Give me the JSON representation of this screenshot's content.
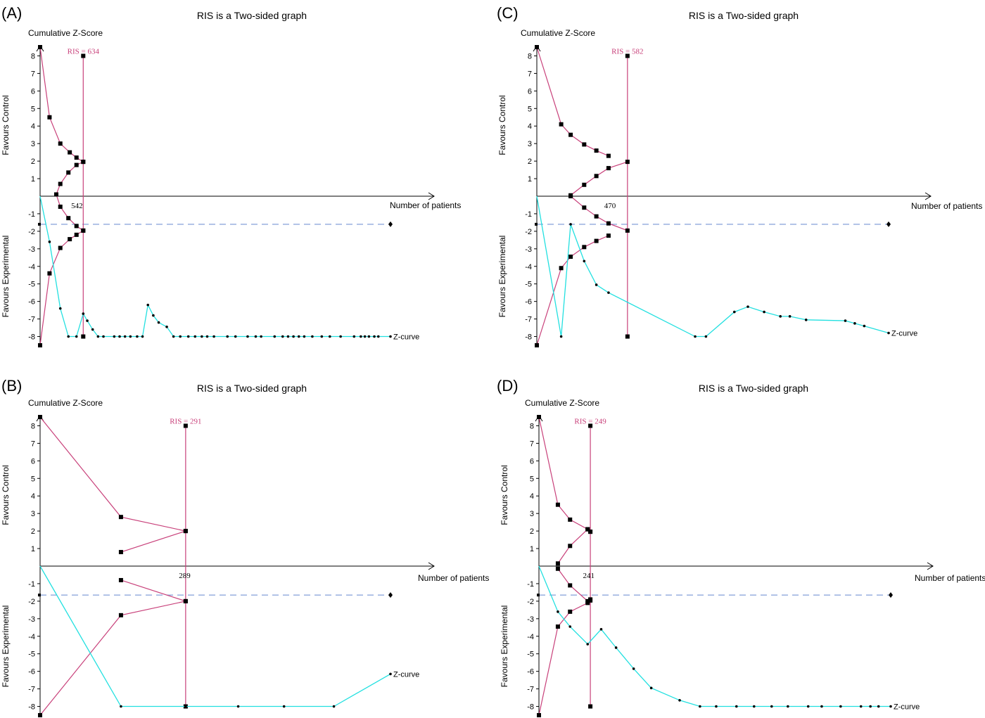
{
  "colors": {
    "boundary": "#c8407a",
    "z_curve": "#22e0e0",
    "futility": "#8fa8dc",
    "axis": "#000000"
  },
  "chart_data": [
    {
      "type": "line",
      "panel": "(A)",
      "title": "RIS is a Two-sided graph",
      "ylabel": "Cumulative Z-Score",
      "ylabel_upper": "Favours Control",
      "ylabel_lower": "Favours Experimental",
      "xlabel": "Number of patients",
      "yticks": [
        8,
        7,
        6,
        5,
        4,
        3,
        2,
        1,
        -1,
        -2,
        -3,
        -4,
        -5,
        -6,
        -7,
        -8
      ],
      "ylim": [
        -8.5,
        8.5
      ],
      "xlim": [
        0,
        2600
      ],
      "ris_label": "RIS = 634",
      "ris_value": 634,
      "x_marker": 542,
      "x_marker_label": "542",
      "z_curve_label": "Z-curve",
      "futility_level": -1.6,
      "futility_end": 2600,
      "boundaries": [
        {
          "name": "upper_efficacy",
          "points": [
            [
              0,
              8.5
            ],
            [
              70,
              4.5
            ],
            [
              150,
              3.0
            ],
            [
              220,
              2.5
            ],
            [
              270,
              2.2
            ],
            [
              320,
              1.96
            ]
          ]
        },
        {
          "name": "upper_futility",
          "points": [
            [
              120,
              0.1
            ],
            [
              150,
              0.7
            ],
            [
              210,
              1.35
            ],
            [
              270,
              1.78
            ],
            [
              320,
              1.96
            ]
          ]
        },
        {
          "name": "lower_futility",
          "points": [
            [
              120,
              0.1
            ],
            [
              150,
              -0.6
            ],
            [
              210,
              -1.25
            ],
            [
              270,
              -1.7
            ],
            [
              320,
              -1.96
            ]
          ]
        },
        {
          "name": "lower_efficacy",
          "points": [
            [
              0,
              -8.5
            ],
            [
              70,
              -4.4
            ],
            [
              150,
              -2.95
            ],
            [
              220,
              -2.45
            ],
            [
              270,
              -2.2
            ],
            [
              320,
              -1.96
            ]
          ]
        }
      ],
      "ris_line": [
        [
          320,
          8.0
        ],
        [
          320,
          -8.0
        ]
      ],
      "z_curve": [
        [
          0,
          0
        ],
        [
          70,
          -2.6
        ],
        [
          150,
          -6.4
        ],
        [
          210,
          -8.0
        ],
        [
          270,
          -8.0
        ],
        [
          320,
          -6.7
        ],
        [
          350,
          -7.1
        ],
        [
          390,
          -7.6
        ],
        [
          430,
          -8.0
        ],
        [
          470,
          -8.0
        ],
        [
          550,
          -8.0
        ],
        [
          590,
          -8.0
        ],
        [
          630,
          -8.0
        ],
        [
          670,
          -8.0
        ],
        [
          720,
          -8.0
        ],
        [
          760,
          -8.0
        ],
        [
          800,
          -6.2
        ],
        [
          840,
          -6.8
        ],
        [
          880,
          -7.2
        ],
        [
          940,
          -7.45
        ],
        [
          990,
          -8.0
        ],
        [
          1040,
          -8.0
        ],
        [
          1100,
          -8.0
        ],
        [
          1150,
          -8.0
        ],
        [
          1200,
          -8.0
        ],
        [
          1240,
          -8.0
        ],
        [
          1290,
          -8.0
        ],
        [
          1390,
          -8.0
        ],
        [
          1450,
          -8.0
        ],
        [
          1540,
          -8.0
        ],
        [
          1600,
          -8.0
        ],
        [
          1640,
          -8.0
        ],
        [
          1740,
          -8.0
        ],
        [
          1800,
          -8.0
        ],
        [
          1840,
          -8.0
        ],
        [
          1880,
          -8.0
        ],
        [
          1920,
          -8.0
        ],
        [
          1960,
          -8.0
        ],
        [
          2020,
          -8.0
        ],
        [
          2090,
          -8.0
        ],
        [
          2150,
          -8.0
        ],
        [
          2230,
          -8.0
        ],
        [
          2330,
          -8.0
        ],
        [
          2380,
          -8.0
        ],
        [
          2410,
          -8.0
        ],
        [
          2440,
          -8.0
        ],
        [
          2480,
          -8.0
        ],
        [
          2510,
          -8.0
        ],
        [
          2600,
          -8.0
        ]
      ]
    },
    {
      "type": "line",
      "panel": "(B)",
      "title": "RIS is a Two-sided graph",
      "ylabel": "Cumulative Z-Score",
      "ylabel_upper": "Favours Control",
      "ylabel_lower": "Favours Experimental",
      "xlabel": "Number of patients",
      "yticks": [
        8,
        7,
        6,
        5,
        4,
        3,
        2,
        1,
        -1,
        -2,
        -3,
        -4,
        -5,
        -6,
        -7,
        -8
      ],
      "ylim": [
        -8.5,
        8.5
      ],
      "xlim": [
        0,
        2600
      ],
      "ris_label": "RIS = 291",
      "ris_value": 291,
      "x_marker": 289,
      "x_marker_label": "289",
      "z_curve_label": "Z-curve",
      "futility_level": -1.65,
      "futility_end": 2600,
      "boundaries": [
        {
          "name": "upper_efficacy",
          "points": [
            [
              0,
              8.5
            ],
            [
              600,
              2.8
            ],
            [
              1080,
              2.0
            ]
          ]
        },
        {
          "name": "upper_futility",
          "points": [
            [
              600,
              0.8
            ],
            [
              1080,
              2.0
            ]
          ]
        },
        {
          "name": "lower_futility",
          "points": [
            [
              600,
              -0.8
            ],
            [
              1080,
              -2.0
            ]
          ]
        },
        {
          "name": "lower_efficacy",
          "points": [
            [
              0,
              -8.5
            ],
            [
              600,
              -2.8
            ],
            [
              1080,
              -2.0
            ]
          ]
        }
      ],
      "ris_line": [
        [
          1080,
          8.0
        ],
        [
          1080,
          -8.0
        ]
      ],
      "z_curve": [
        [
          0,
          0
        ],
        [
          600,
          -8.0
        ],
        [
          1080,
          -8.0
        ],
        [
          1470,
          -8.0
        ],
        [
          1810,
          -8.0
        ],
        [
          2180,
          -8.0
        ],
        [
          2600,
          -6.15
        ]
      ]
    },
    {
      "type": "line",
      "panel": "(C)",
      "title": "RIS is a Two-sided graph",
      "ylabel": "Cumulative Z-Score",
      "ylabel_upper": "Favours Control",
      "ylabel_lower": "Favours Experimental",
      "xlabel": "Number of patients",
      "yticks": [
        8,
        7,
        6,
        5,
        4,
        3,
        2,
        1,
        -1,
        -2,
        -3,
        -4,
        -5,
        -6,
        -7,
        -8
      ],
      "ylim": [
        -8.5,
        8.5
      ],
      "xlim": [
        0,
        2600
      ],
      "ris_label": "RIS = 582",
      "ris_value": 582,
      "x_marker": 470,
      "x_marker_label": "470",
      "z_curve_label": "Z-curve",
      "futility_level": -1.6,
      "futility_end": 2600,
      "boundaries": [
        {
          "name": "upper_efficacy",
          "points": [
            [
              0,
              8.5
            ],
            [
              180,
              4.1
            ],
            [
              250,
              3.5
            ],
            [
              350,
              2.95
            ],
            [
              440,
              2.6
            ],
            [
              530,
              2.3
            ]
          ]
        },
        {
          "name": "upper_futility",
          "points": [
            [
              250,
              0.05
            ],
            [
              350,
              0.65
            ],
            [
              440,
              1.15
            ],
            [
              530,
              1.6
            ],
            [
              670,
              1.96
            ]
          ]
        },
        {
          "name": "lower_futility",
          "points": [
            [
              250,
              0.0
            ],
            [
              350,
              -0.65
            ],
            [
              440,
              -1.15
            ],
            [
              530,
              -1.55
            ],
            [
              670,
              -1.96
            ]
          ]
        },
        {
          "name": "lower_efficacy",
          "points": [
            [
              0,
              -8.5
            ],
            [
              180,
              -4.1
            ],
            [
              250,
              -3.45
            ],
            [
              350,
              -2.9
            ],
            [
              440,
              -2.55
            ],
            [
              530,
              -2.25
            ]
          ]
        }
      ],
      "ris_line": [
        [
          670,
          8.0
        ],
        [
          670,
          -8.0
        ]
      ],
      "z_curve": [
        [
          0,
          0
        ],
        [
          180,
          -8.0
        ],
        [
          250,
          -1.6
        ],
        [
          350,
          -3.7
        ],
        [
          440,
          -5.05
        ],
        [
          530,
          -5.5
        ],
        [
          1170,
          -8.0
        ],
        [
          1250,
          -8.0
        ],
        [
          1460,
          -6.6
        ],
        [
          1560,
          -6.3
        ],
        [
          1680,
          -6.6
        ],
        [
          1800,
          -6.85
        ],
        [
          1870,
          -6.85
        ],
        [
          1990,
          -7.05
        ],
        [
          2280,
          -7.1
        ],
        [
          2350,
          -7.25
        ],
        [
          2420,
          -7.4
        ],
        [
          2600,
          -7.8
        ]
      ]
    },
    {
      "type": "line",
      "panel": "(D)",
      "title": "RIS is a Two-sided graph",
      "ylabel": "Cumulative Z-Score",
      "ylabel_upper": "Favours Control",
      "ylabel_lower": "Favours Experimental",
      "xlabel": "Number of patients",
      "yticks": [
        8,
        7,
        6,
        5,
        4,
        3,
        2,
        1,
        -1,
        -2,
        -3,
        -4,
        -5,
        -6,
        -7,
        -8
      ],
      "ylim": [
        -8.5,
        8.5
      ],
      "xlim": [
        0,
        2600
      ],
      "ris_label": "RIS = 249",
      "ris_value": 249,
      "x_marker": 241,
      "x_marker_label": "241",
      "z_curve_label": "Z-curve",
      "futility_level": -1.65,
      "futility_end": 2600,
      "boundaries": [
        {
          "name": "upper_efficacy",
          "points": [
            [
              0,
              8.5
            ],
            [
              140,
              3.5
            ],
            [
              230,
              2.65
            ],
            [
              360,
              2.1
            ],
            [
              380,
              1.96
            ]
          ]
        },
        {
          "name": "upper_futility",
          "points": [
            [
              140,
              0.15
            ],
            [
              230,
              1.15
            ],
            [
              360,
              2.1
            ],
            [
              380,
              1.96
            ]
          ]
        },
        {
          "name": "lower_futility",
          "points": [
            [
              140,
              -0.15
            ],
            [
              230,
              -1.1
            ],
            [
              360,
              -2.0
            ],
            [
              380,
              -1.9
            ]
          ]
        },
        {
          "name": "lower_efficacy",
          "points": [
            [
              0,
              -8.5
            ],
            [
              140,
              -3.45
            ],
            [
              230,
              -2.6
            ],
            [
              360,
              -2.1
            ],
            [
              380,
              -1.96
            ]
          ]
        }
      ],
      "ris_line": [
        [
          380,
          8.0
        ],
        [
          380,
          -8.0
        ]
      ],
      "z_curve": [
        [
          0,
          0
        ],
        [
          140,
          -2.6
        ],
        [
          230,
          -3.45
        ],
        [
          360,
          -4.45
        ],
        [
          460,
          -3.6
        ],
        [
          570,
          -4.65
        ],
        [
          700,
          -5.85
        ],
        [
          830,
          -6.95
        ],
        [
          1040,
          -7.65
        ],
        [
          1190,
          -8.0
        ],
        [
          1310,
          -8.0
        ],
        [
          1460,
          -8.0
        ],
        [
          1590,
          -8.0
        ],
        [
          1720,
          -8.0
        ],
        [
          1840,
          -8.0
        ],
        [
          1990,
          -8.0
        ],
        [
          2090,
          -8.0
        ],
        [
          2230,
          -8.0
        ],
        [
          2380,
          -8.0
        ],
        [
          2450,
          -8.0
        ],
        [
          2510,
          -8.0
        ],
        [
          2600,
          -8.0
        ]
      ]
    }
  ]
}
